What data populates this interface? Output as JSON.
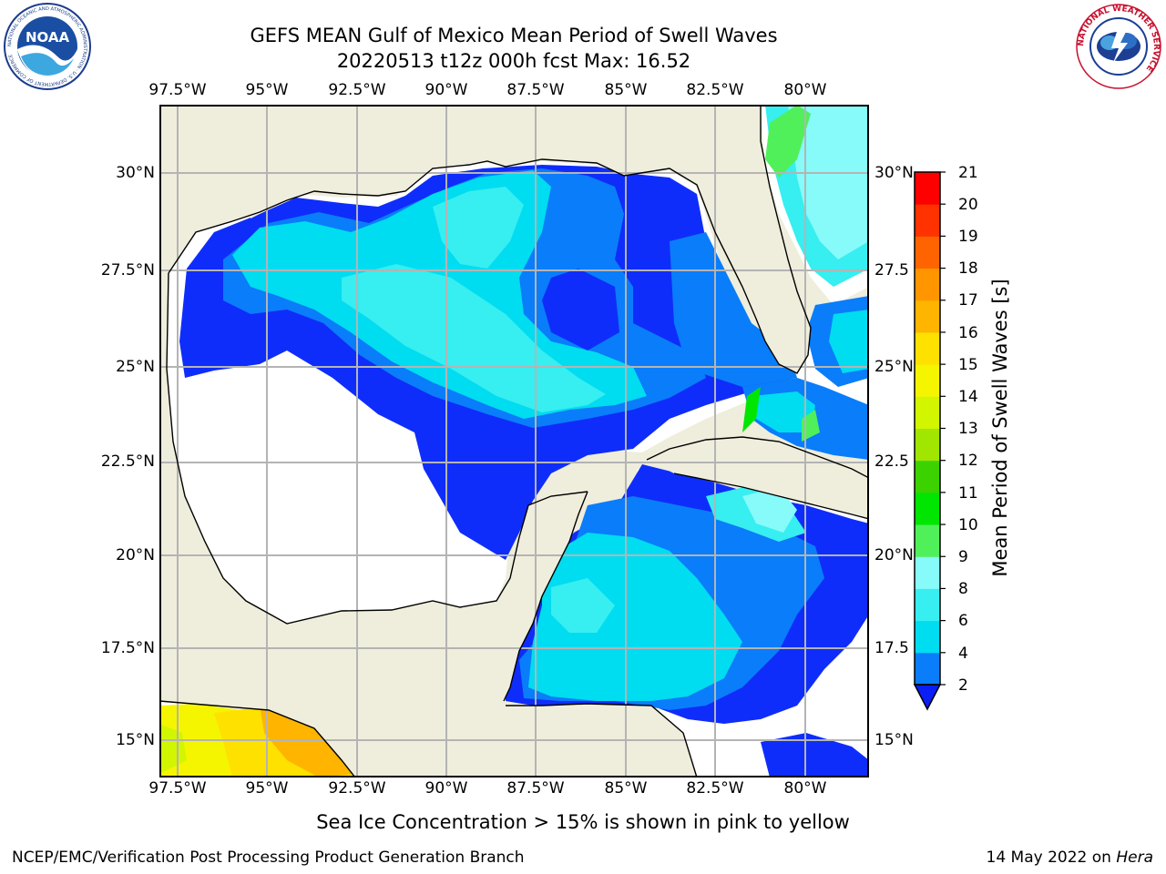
{
  "header": {
    "title_line1": "GEFS MEAN Gulf of Mexico Mean Period of Swell Waves",
    "title_line2": "20220513 t12z 000h fcst   Max: 16.52"
  },
  "logos": {
    "left": "noaa-logo",
    "left_text": "NATIONAL OCEANIC AND ATMOSPHERIC ADMINISTRATION · U.S. DEPARTMENT OF COMMERCE",
    "left_center": "NOAA",
    "right": "national-weather-service-logo",
    "right_text": "NATIONAL WEATHER SERVICE"
  },
  "map": {
    "lon_labels": [
      "97.5°W",
      "95°W",
      "92.5°W",
      "90°W",
      "87.5°W",
      "85°W",
      "82.5°W",
      "80°W"
    ],
    "lat_labels_left": [
      "30°N",
      "27.5°N",
      "25°N",
      "22.5°N",
      "20°N",
      "17.5°N",
      "15°N"
    ],
    "lat_labels_right": [
      "30°N",
      "27.5",
      "25°N",
      "22.5",
      "20°N",
      "17.5",
      "15°N"
    ],
    "colors": {
      "land": "#efeddc",
      "ocean_nodata": "#ffffff",
      "grid": "#b4b4b4"
    }
  },
  "colorbar": {
    "label": "Mean Period of Swell Waves [s]",
    "ticks": [
      "2",
      "4",
      "6",
      "8",
      "9",
      "10",
      "11",
      "12",
      "13",
      "14",
      "15",
      "16",
      "17",
      "18",
      "19",
      "20",
      "21"
    ],
    "colors": [
      "#0f2dfa",
      "#0a7dfa",
      "#00dcf0",
      "#37eef0",
      "#87fafa",
      "#50f05a",
      "#00e600",
      "#3cd200",
      "#a0e600",
      "#d2f500",
      "#f5f500",
      "#ffe100",
      "#ffb400",
      "#ff9600",
      "#ff6400",
      "#ff3200",
      "#ff0000"
    ],
    "extend_color": "#0a1ef5"
  },
  "footer": {
    "note": "Sea Ice Concentration > 15% is shown in pink to yellow",
    "credit": "NCEP/EMC/Verification Post Processing Product Generation Branch",
    "date": "14 May 2022 on",
    "machine": "Hera"
  }
}
